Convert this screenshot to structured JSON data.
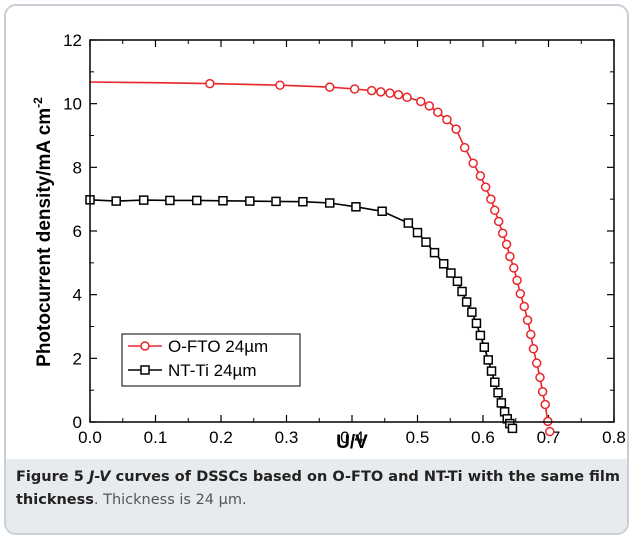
{
  "chart_data": {
    "type": "line",
    "xlabel": "U/V",
    "ylabel": "Photocurrent density/mA cm",
    "ylabel_sup": "-2",
    "xlim": [
      0.0,
      0.8
    ],
    "ylim": [
      0,
      12
    ],
    "xticks": [
      "0.0",
      "0.1",
      "0.2",
      "0.3",
      "0.4",
      "0.5",
      "0.6",
      "0.7",
      "0.8"
    ],
    "yticks": [
      "0",
      "2",
      "4",
      "6",
      "8",
      "10",
      "12"
    ],
    "legend_position": "lower-left",
    "series": [
      {
        "name": "O-FTO 24µm",
        "color": "#e8262a",
        "marker": "circle",
        "x": [
          0.0,
          0.1,
          0.183,
          0.25,
          0.29,
          0.33,
          0.366,
          0.404,
          0.43,
          0.444,
          0.458,
          0.471,
          0.484,
          0.505,
          0.518,
          0.531,
          0.545,
          0.559,
          0.572,
          0.585,
          0.596,
          0.604,
          0.612,
          0.618,
          0.624,
          0.63,
          0.636,
          0.641,
          0.647,
          0.652,
          0.657,
          0.663,
          0.668,
          0.673,
          0.677,
          0.682,
          0.687,
          0.691,
          0.695,
          0.699,
          0.702,
          0.704
        ],
        "y": [
          10.68,
          10.66,
          10.63,
          10.6,
          10.58,
          10.55,
          10.52,
          10.46,
          10.41,
          10.37,
          10.33,
          10.28,
          10.2,
          10.07,
          9.93,
          9.73,
          9.5,
          9.2,
          8.62,
          8.13,
          7.73,
          7.38,
          7.0,
          6.65,
          6.3,
          5.93,
          5.58,
          5.2,
          4.84,
          4.45,
          4.03,
          3.63,
          3.2,
          2.75,
          2.3,
          1.85,
          1.4,
          0.95,
          0.55,
          0.02,
          -0.3,
          -0.5
        ],
        "marker_x": [
          0.183,
          0.29,
          0.366,
          0.404,
          0.43,
          0.444,
          0.458,
          0.471,
          0.484,
          0.505,
          0.518,
          0.531,
          0.545,
          0.559,
          0.572,
          0.585,
          0.596,
          0.604,
          0.612,
          0.618,
          0.624,
          0.63,
          0.636,
          0.641,
          0.647,
          0.652,
          0.657,
          0.663,
          0.668,
          0.673,
          0.677,
          0.682,
          0.687,
          0.691,
          0.695,
          0.699,
          0.702
        ]
      },
      {
        "name": "NT-Ti 24µm",
        "color": "#000000",
        "marker": "square",
        "x": [
          0.0,
          0.04,
          0.082,
          0.122,
          0.163,
          0.203,
          0.244,
          0.284,
          0.325,
          0.366,
          0.406,
          0.446,
          0.486,
          0.5,
          0.513,
          0.526,
          0.54,
          0.551,
          0.561,
          0.568,
          0.575,
          0.583,
          0.59,
          0.596,
          0.602,
          0.608,
          0.613,
          0.618,
          0.623,
          0.628,
          0.633,
          0.637,
          0.641,
          0.645,
          0.65
        ],
        "y": [
          6.98,
          6.94,
          6.97,
          6.96,
          6.96,
          6.95,
          6.94,
          6.93,
          6.92,
          6.88,
          6.76,
          6.62,
          6.25,
          5.95,
          5.65,
          5.32,
          4.97,
          4.68,
          4.42,
          4.1,
          3.77,
          3.45,
          3.1,
          2.72,
          2.35,
          1.95,
          1.6,
          1.25,
          0.92,
          0.6,
          0.32,
          0.1,
          -0.05,
          -0.2,
          -0.35
        ],
        "marker_x": [
          0.0,
          0.04,
          0.082,
          0.122,
          0.163,
          0.203,
          0.244,
          0.284,
          0.325,
          0.366,
          0.406,
          0.446,
          0.486,
          0.5,
          0.513,
          0.526,
          0.54,
          0.551,
          0.561,
          0.568,
          0.575,
          0.583,
          0.59,
          0.596,
          0.602,
          0.608,
          0.613,
          0.618,
          0.623,
          0.628,
          0.633,
          0.637,
          0.641,
          0.645
        ]
      }
    ]
  },
  "caption": {
    "figure_label": "Figure 5 ",
    "jv": "J-V",
    "title_rest": " curves of DSSCs based on O-FTO and NT-Ti with the same film thickness",
    "rest": ". Thickness is 24 µm."
  }
}
